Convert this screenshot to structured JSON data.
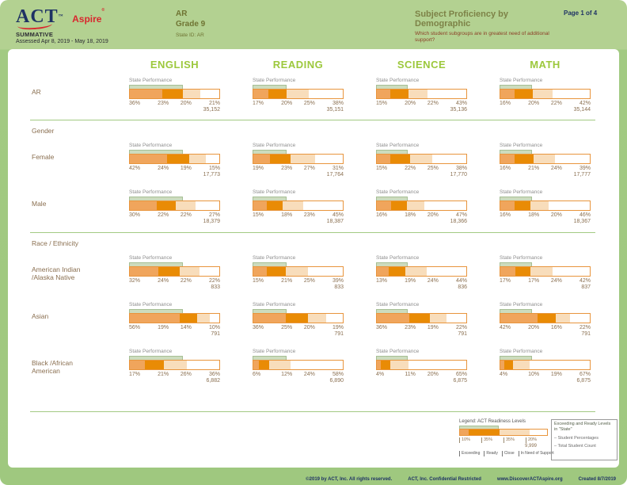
{
  "header": {
    "logo_act": "ACT",
    "logo_act_mark": "™",
    "logo_aspire": "Aspire",
    "logo_aspire_mark": "®",
    "program": "SUMMATIVE",
    "assessed": "Assessed Apr 8, 2019 - May 18, 2019",
    "org": "AR",
    "grade": "Grade 9",
    "state_id": "State ID: AR",
    "title": "Subject Proficiency by Demographic",
    "subtitle": "Which student subgroups are in greatest need of additional support?",
    "page": "Page 1 of 4"
  },
  "columns": {
    "subjects": [
      "ENGLISH",
      "READING",
      "SCIENCE",
      "MATH"
    ]
  },
  "state_performance_label": "State Performance",
  "state_ready_pct": [
    59,
    37,
    35,
    36
  ],
  "sections": [
    {
      "label": "",
      "rows": [
        {
          "label": "AR",
          "cells": [
            {
              "pcts": [
                "36%",
                "23%",
                "20%",
                "21%"
              ],
              "count": "35,152"
            },
            {
              "pcts": [
                "17%",
                "20%",
                "25%",
                "38%"
              ],
              "count": "35,151"
            },
            {
              "pcts": [
                "15%",
                "20%",
                "22%",
                "43%"
              ],
              "count": "35,136"
            },
            {
              "pcts": [
                "16%",
                "20%",
                "22%",
                "42%"
              ],
              "count": "35,144"
            }
          ]
        }
      ]
    },
    {
      "label": "Gender",
      "rows": [
        {
          "label": "Female",
          "cells": [
            {
              "pcts": [
                "42%",
                "24%",
                "19%",
                "15%"
              ],
              "count": "17,773"
            },
            {
              "pcts": [
                "19%",
                "23%",
                "27%",
                "31%"
              ],
              "count": "17,764"
            },
            {
              "pcts": [
                "15%",
                "22%",
                "25%",
                "38%"
              ],
              "count": "17,770"
            },
            {
              "pcts": [
                "16%",
                "21%",
                "24%",
                "39%"
              ],
              "count": "17,777"
            }
          ]
        },
        {
          "label": "Male",
          "cells": [
            {
              "pcts": [
                "30%",
                "22%",
                "22%",
                "27%"
              ],
              "count": "18,379"
            },
            {
              "pcts": [
                "15%",
                "18%",
                "23%",
                "45%"
              ],
              "count": "18,387"
            },
            {
              "pcts": [
                "16%",
                "18%",
                "20%",
                "47%"
              ],
              "count": "18,366"
            },
            {
              "pcts": [
                "16%",
                "18%",
                "20%",
                "46%"
              ],
              "count": "18,367"
            }
          ]
        }
      ]
    },
    {
      "label": "Race / Ethnicity",
      "rows": [
        {
          "label": "American Indian /Alaska Native",
          "cells": [
            {
              "pcts": [
                "32%",
                "24%",
                "22%",
                "22%"
              ],
              "count": "833"
            },
            {
              "pcts": [
                "15%",
                "21%",
                "25%",
                "39%"
              ],
              "count": "833"
            },
            {
              "pcts": [
                "13%",
                "19%",
                "24%",
                "44%"
              ],
              "count": "836"
            },
            {
              "pcts": [
                "17%",
                "17%",
                "24%",
                "42%"
              ],
              "count": "837"
            }
          ]
        },
        {
          "label": "Asian",
          "cells": [
            {
              "pcts": [
                "56%",
                "19%",
                "14%",
                "10%"
              ],
              "count": "791"
            },
            {
              "pcts": [
                "36%",
                "25%",
                "20%",
                "19%"
              ],
              "count": "791"
            },
            {
              "pcts": [
                "36%",
                "23%",
                "19%",
                "22%"
              ],
              "count": "791"
            },
            {
              "pcts": [
                "42%",
                "20%",
                "16%",
                "22%"
              ],
              "count": "791"
            }
          ]
        },
        {
          "label": "Black /African American",
          "cells": [
            {
              "pcts": [
                "17%",
                "21%",
                "26%",
                "36%"
              ],
              "count": "6,882"
            },
            {
              "pcts": [
                "6%",
                "12%",
                "24%",
                "58%"
              ],
              "count": "6,890"
            },
            {
              "pcts": [
                "4%",
                "11%",
                "20%",
                "65%"
              ],
              "count": "6,875"
            },
            {
              "pcts": [
                "4%",
                "10%",
                "19%",
                "67%"
              ],
              "count": "6,875"
            }
          ]
        }
      ]
    }
  ],
  "legend": {
    "title": "Legend: ACT Readiness Levels",
    "sample_pcts": [
      "10%",
      "35%",
      "35%",
      "20%"
    ],
    "sample_count": "9,999",
    "levels": [
      "Exceeding",
      "Ready",
      "Close",
      "In Need of Support"
    ],
    "green_note": "Exceeding and Ready Levels in \"State\"",
    "pct_note": "– Student Percentages",
    "count_note": "– Total Student Count"
  },
  "footer": {
    "items": [
      "©2019 by ACT, Inc. All rights reserved.",
      "ACT, Inc. Confidential Restricted",
      "www.DiscoverACTAspire.org",
      "Created 8/7/2019"
    ]
  },
  "colors": {
    "exceeding": "#f0a55c",
    "ready": "#e98b05",
    "close": "#f8ddbb",
    "in_need": "#ffffff",
    "bar_border": "#e8953d",
    "state_overlay": "#cddcbe",
    "accent_green": "#9cc83c"
  }
}
